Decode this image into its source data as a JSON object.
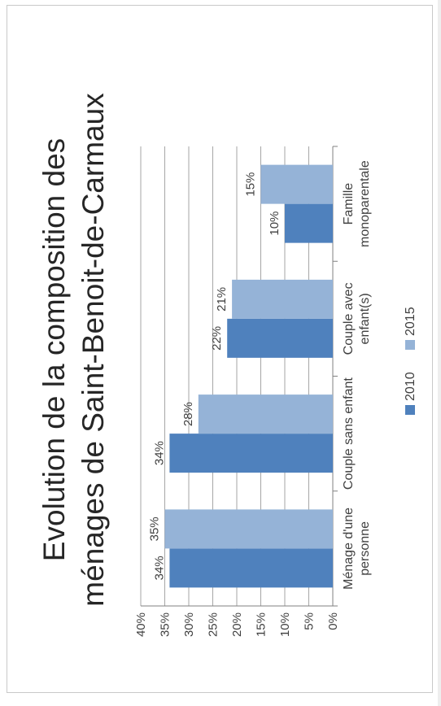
{
  "chart_data": {
    "type": "bar",
    "title_lines": [
      "Evolution de la composition des",
      "ménages de Saint-Benoit-de-Carmaux"
    ],
    "categories": [
      [
        "Ménage d'une",
        "personne"
      ],
      [
        "Couple sans enfant"
      ],
      [
        "Couple avec",
        "enfant(s)"
      ],
      [
        "Famille",
        "monoparentale"
      ]
    ],
    "series": [
      {
        "name": "2010",
        "values": [
          34,
          34,
          22,
          10
        ],
        "labels": [
          "34%",
          "34%",
          "22%",
          "10%"
        ],
        "color": "#4f81bd"
      },
      {
        "name": "2015",
        "values": [
          35,
          28,
          21,
          15
        ],
        "labels": [
          "35%",
          "28%",
          "21%",
          "15%"
        ],
        "color": "#95b3d7"
      }
    ],
    "y_ticks": [
      "0%",
      "5%",
      "10%",
      "15%",
      "20%",
      "25%",
      "30%",
      "35%",
      "40%"
    ],
    "ylim": [
      0,
      40
    ],
    "grid": true,
    "legend_position": "bottom",
    "orientation": "rotated 90° counter-clockwise"
  }
}
